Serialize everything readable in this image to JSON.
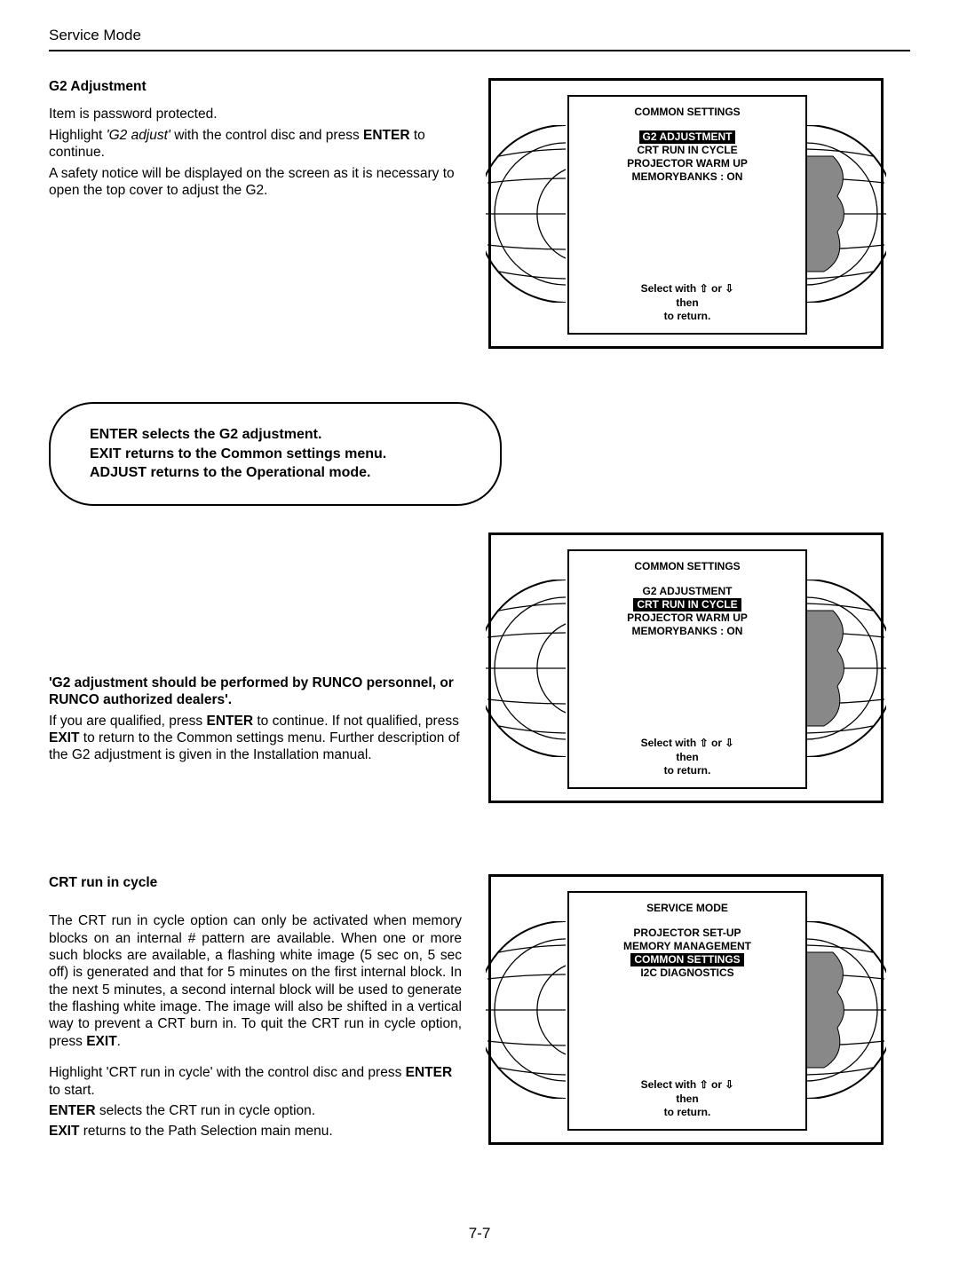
{
  "header": "Service Mode",
  "page_num": "7-7",
  "section1": {
    "heading": "G2 Adjustment",
    "line1": "Item is password protected.",
    "line2a": "Highlight ",
    "line2b": "'G2 adjust'",
    "line2c": " with the control disc and press ",
    "line2d": "ENTER",
    "line2e": " to continue.",
    "line3": "A safety notice will be displayed on the screen as it is necessary to open the top cover to adjust the G2."
  },
  "oval": {
    "l1": "ENTER selects the G2 adjustment.",
    "l2": "EXIT returns to the Common settings menu.",
    "l3": "ADJUST returns to the Operational mode."
  },
  "section2": {
    "bold": "'G2 adjustment should be performed by RUNCO personnel, or RUNCO authorized dealers'.",
    "p1a": "If you are qualified, press ",
    "p1b": "ENTER",
    "p1c": " to continue. If not qualified, press ",
    "p1d": "EXIT",
    "p1e": " to return to the Common settings menu. Further description of the G2 adjustment is given in the Installation manual."
  },
  "section3": {
    "heading": "CRT run in cycle",
    "p1a": "The CRT run in cycle option can only be activated when memory blocks on an internal # pattern are available. When one or more such blocks are available, a flashing white image (5 sec on, 5 sec off) is generated and that for 5 minutes on the first internal block. In the next 5 minutes, a second internal block will be used to generate the flashing white image. The image will also be shifted in a vertical way to prevent a CRT burn in. To quit the CRT run in cycle option, press ",
    "p1b": "EXIT",
    "p1c": ".",
    "p2a": "Highlight 'CRT run in cycle' with the control disc and press ",
    "p2b": "ENTER",
    "p2c": " to start.",
    "p3a": "ENTER",
    "p3b": " selects the CRT run in cycle option.",
    "p4a": "EXIT",
    "p4b": " returns to the Path Selection main menu."
  },
  "screen1": {
    "title": "COMMON SETTINGS",
    "items": [
      "G2 ADJUSTMENT",
      "CRT RUN IN CYCLE",
      "PROJECTOR WARM UP",
      "MEMORYBANKS : ON"
    ],
    "selected": 0
  },
  "screen2": {
    "title": "COMMON SETTINGS",
    "items": [
      "G2 ADJUSTMENT",
      "CRT RUN IN CYCLE",
      "PROJECTOR WARM UP",
      "MEMORYBANKS : ON"
    ],
    "selected": 1
  },
  "screen3": {
    "title": "SERVICE MODE",
    "items": [
      "PROJECTOR SET-UP",
      "MEMORY MANAGEMENT",
      "COMMON SETTINGS",
      "I2C DIAGNOSTICS"
    ],
    "selected": 2
  },
  "footer": {
    "l1a": "Select with ",
    "l1b": " or ",
    "l2": "then  <ENTER>",
    "l3": "<EXIT>  to return."
  }
}
